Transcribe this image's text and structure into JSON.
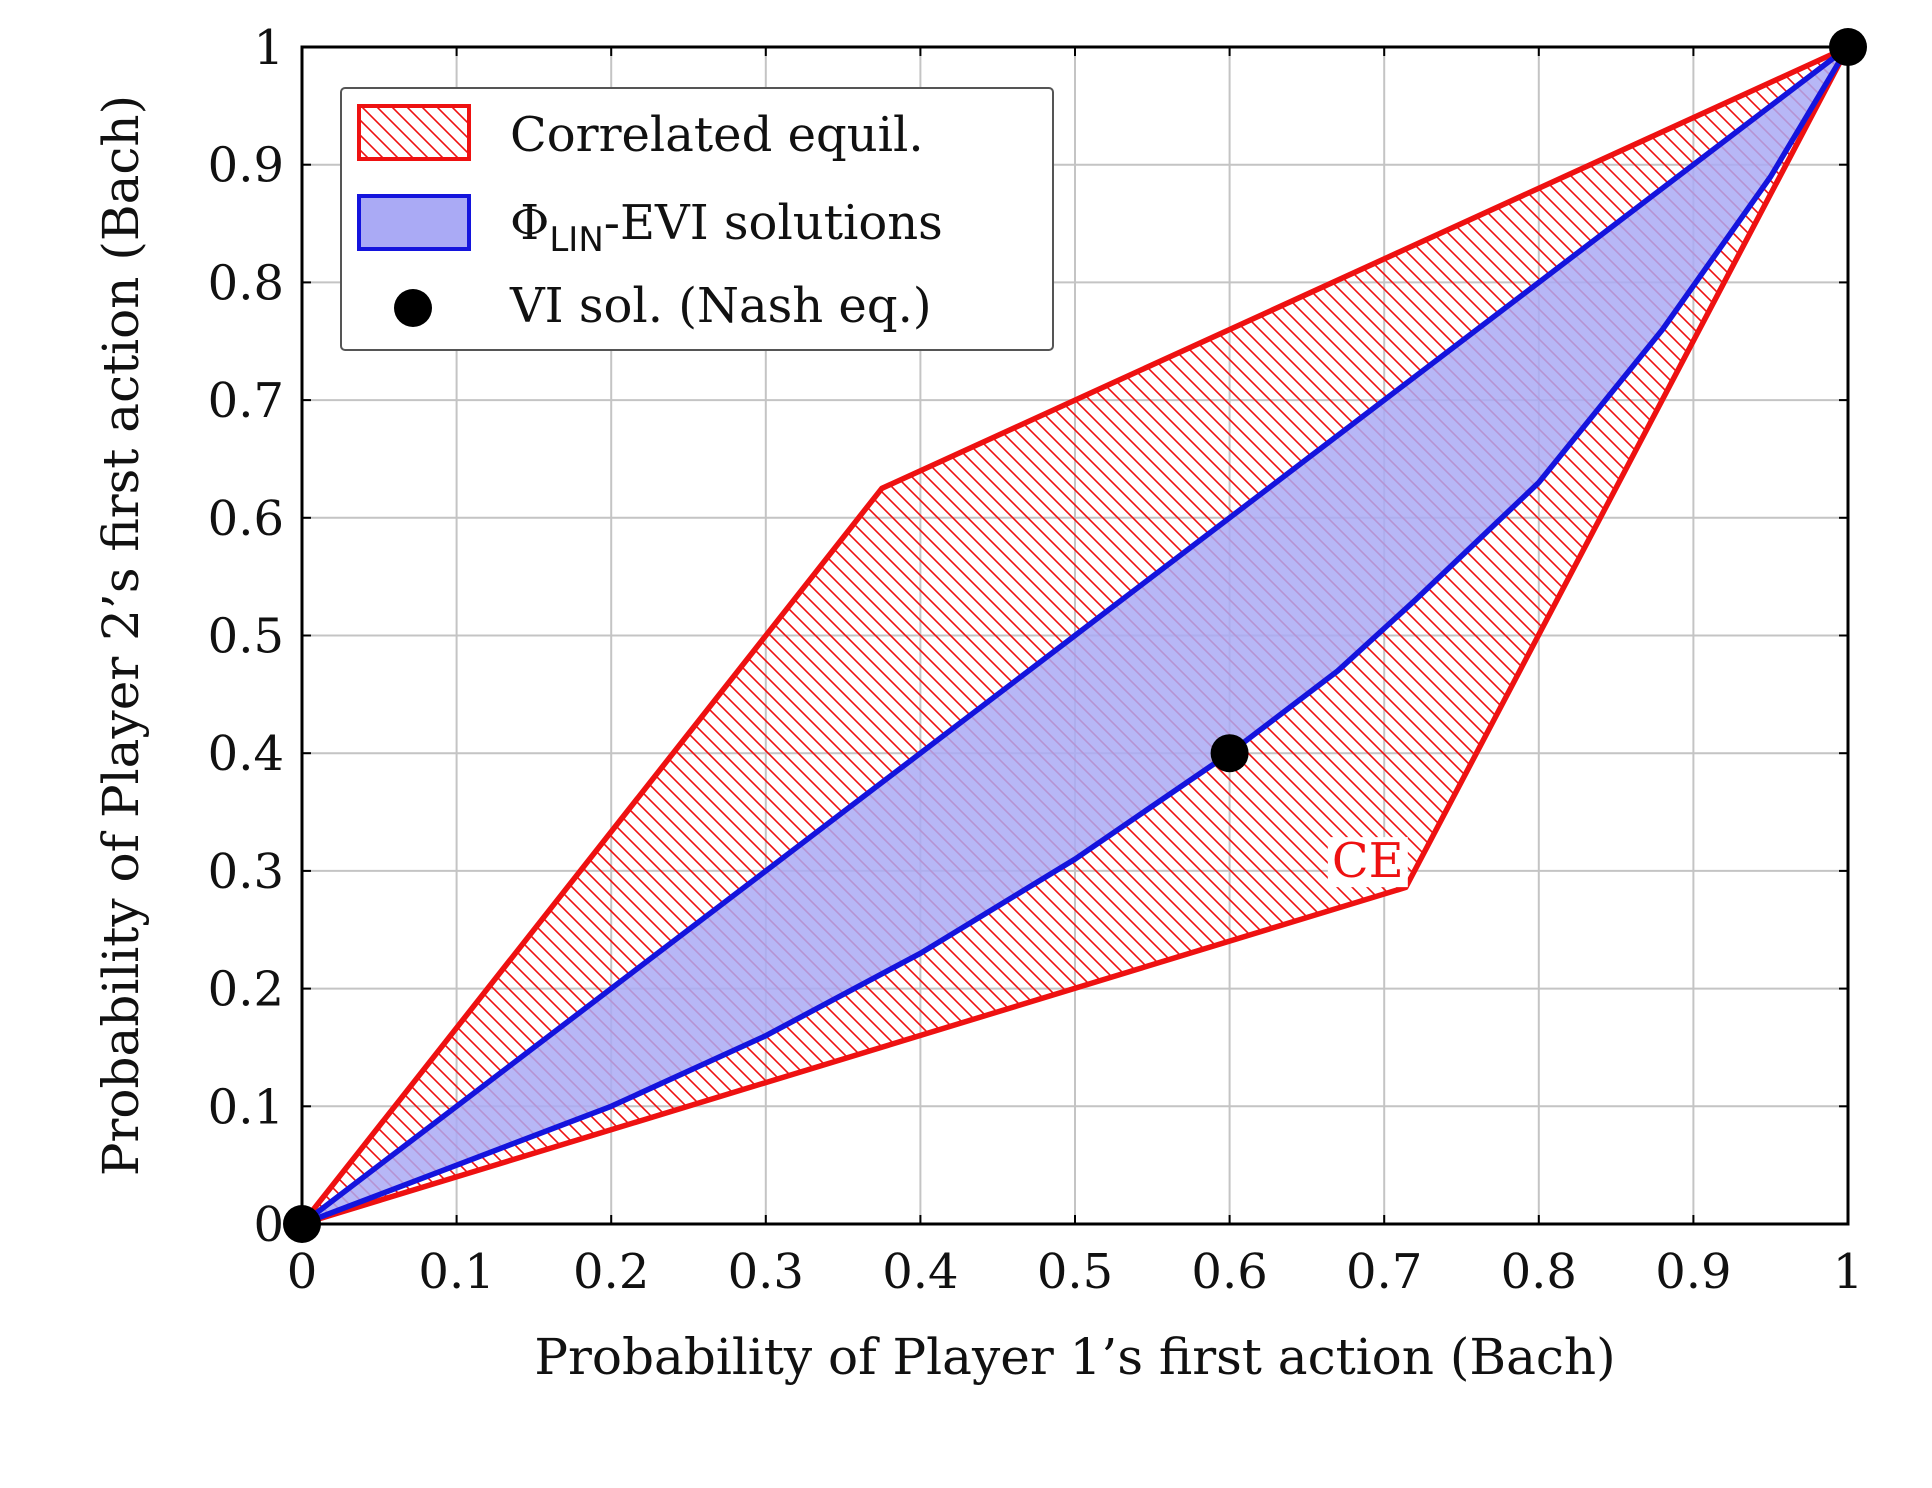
{
  "chart_data": {
    "type": "area",
    "xlabel": "Probability of Player 1’s first action (Bach)",
    "ylabel": "Probability of Player 2’s first action (Bach)",
    "xlim": [
      0,
      1
    ],
    "ylim": [
      0,
      1
    ],
    "x_ticks": [
      "0",
      "0.1",
      "0.2",
      "0.3",
      "0.4",
      "0.5",
      "0.6",
      "0.7",
      "0.8",
      "0.9",
      "1"
    ],
    "y_ticks": [
      "0",
      "0.1",
      "0.2",
      "0.3",
      "0.4",
      "0.5",
      "0.6",
      "0.7",
      "0.8",
      "0.9",
      "1"
    ],
    "x_tick_values": [
      0,
      0.1,
      0.2,
      0.3,
      0.4,
      0.5,
      0.6,
      0.7,
      0.8,
      0.9,
      1
    ],
    "y_tick_values": [
      0,
      0.1,
      0.2,
      0.3,
      0.4,
      0.5,
      0.6,
      0.7,
      0.8,
      0.9,
      1
    ],
    "grid": true,
    "legend_position": "top-left",
    "series": [
      {
        "name": "Correlated equil.",
        "kind": "hatched-polygon",
        "color": "#ee1111",
        "points": [
          [
            0,
            0
          ],
          [
            0.375,
            0.625
          ],
          [
            1,
            1
          ],
          [
            0.714,
            0.286
          ],
          [
            0,
            0
          ]
        ]
      },
      {
        "name": "LIN",
        "name_prefix": "Φ",
        "name_suffix": "-EVI solutions",
        "kind": "filled-region",
        "color": "#1414dd",
        "fill": "#aaaaf5",
        "upper": [
          [
            0,
            0
          ],
          [
            0.1,
            0.1
          ],
          [
            0.2,
            0.2
          ],
          [
            0.3,
            0.3
          ],
          [
            0.4,
            0.4
          ],
          [
            0.5,
            0.5
          ],
          [
            0.6,
            0.6
          ],
          [
            0.7,
            0.7
          ],
          [
            0.8,
            0.8
          ],
          [
            0.9,
            0.9
          ],
          [
            1,
            1
          ]
        ],
        "lower": [
          [
            0,
            0
          ],
          [
            0.1,
            0.05
          ],
          [
            0.2,
            0.1
          ],
          [
            0.3,
            0.16
          ],
          [
            0.4,
            0.23
          ],
          [
            0.5,
            0.31
          ],
          [
            0.6,
            0.4
          ],
          [
            0.67,
            0.47
          ],
          [
            0.72,
            0.53
          ],
          [
            0.8,
            0.63
          ],
          [
            0.88,
            0.76
          ],
          [
            0.95,
            0.89
          ],
          [
            1,
            1
          ]
        ]
      },
      {
        "name": "VI sol. (Nash eq.)",
        "kind": "scatter",
        "color": "#000000",
        "points": [
          [
            0,
            0
          ],
          [
            0.6,
            0.4
          ],
          [
            1,
            1
          ]
        ]
      }
    ],
    "annotations": [
      {
        "text": "CE",
        "x": 0.67,
        "y": 0.31,
        "color": "#ee1111"
      }
    ]
  }
}
